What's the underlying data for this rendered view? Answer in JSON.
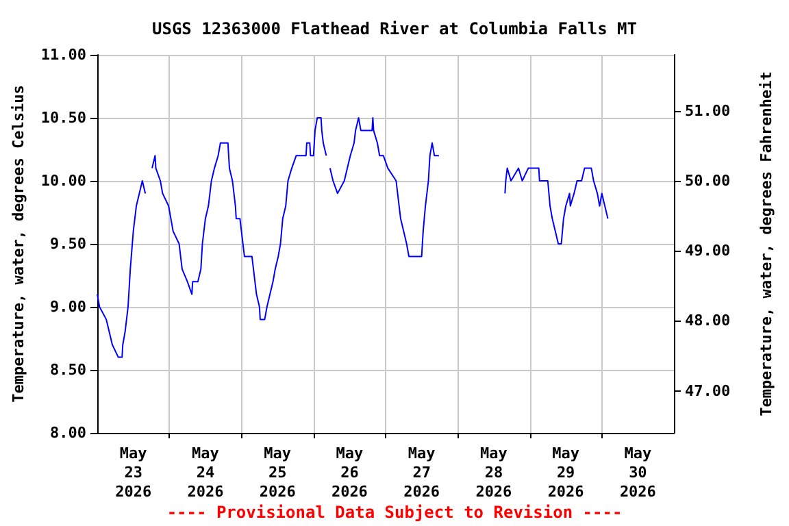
{
  "chart_data": {
    "type": "line",
    "title": "USGS 12363000 Flathead River at Columbia Falls MT",
    "ylabel": "Temperature, water, degrees Celsius",
    "y2label": "Temperature, water, degrees Fahrenheit",
    "annotations": [
      "---- Provisional Data Subject to Revision ----"
    ],
    "xlim": [
      "2026-05-23T00:00",
      "2026-05-31T00:00"
    ],
    "xticks": [
      {
        "value": "2026-05-23T12:00",
        "label": "May\n23\n2026"
      },
      {
        "value": "2026-05-24T12:00",
        "label": "May\n24\n2026"
      },
      {
        "value": "2026-05-25T12:00",
        "label": "May\n25\n2026"
      },
      {
        "value": "2026-05-26T12:00",
        "label": "May\n26\n2026"
      },
      {
        "value": "2026-05-27T12:00",
        "label": "May\n27\n2026"
      },
      {
        "value": "2026-05-28T12:00",
        "label": "May\n28\n2026"
      },
      {
        "value": "2026-05-29T12:00",
        "label": "May\n29\n2026"
      },
      {
        "value": "2026-05-30T12:00",
        "label": "May\n30\n2026"
      },
      {
        "value": "2026-05-24T00:00",
        "label": null
      },
      {
        "value": "2026-05-25T00:00",
        "label": null
      },
      {
        "value": "2026-05-26T00:00",
        "label": null
      },
      {
        "value": "2026-05-27T00:00",
        "label": null
      },
      {
        "value": "2026-05-28T00:00",
        "label": null
      },
      {
        "value": "2026-05-29T00:00",
        "label": null
      },
      {
        "value": "2026-05-30T00:00",
        "label": null
      }
    ],
    "ylim": [
      8,
      11
    ],
    "yticks": [
      {
        "value": 8,
        "label": "8.00"
      },
      {
        "value": 8.5,
        "label": "8.50"
      },
      {
        "value": 9,
        "label": "9.00"
      },
      {
        "value": 9.5,
        "label": "9.50"
      },
      {
        "value": 10,
        "label": "10.00"
      },
      {
        "value": 10.5,
        "label": "10.50"
      },
      {
        "value": 11,
        "label": "11.00"
      }
    ],
    "y2lim": [
      46.4,
      51.8
    ],
    "y2ticks": [
      {
        "value": 47,
        "label": "47.00"
      },
      {
        "value": 48,
        "label": "48.00"
      },
      {
        "value": 49,
        "label": "49.00"
      },
      {
        "value": 50,
        "label": "50.00"
      },
      {
        "value": 51,
        "label": "51.00"
      }
    ],
    "grid": true,
    "marker": "none",
    "line_style": "solid",
    "x": [
      "2026-05-23T00:00",
      "2026-05-23T00:45",
      "2026-05-23T03:00",
      "2026-05-23T04:00",
      "2026-05-23T05:00",
      "2026-05-23T07:00",
      "2026-05-23T08:15",
      "2026-05-23T08:30",
      "2026-05-23T09:15",
      "2026-05-23T10:15",
      "2026-05-23T11:00",
      "2026-05-23T12:00",
      "2026-05-23T13:00",
      "2026-05-23T14:00",
      "2026-05-23T15:00",
      "2026-05-23T16:00",
      "2026-05-23T16:30",
      "2026-05-23T18:15",
      "2026-05-23T19:15",
      "2026-05-23T19:30",
      "2026-05-23T21:00",
      "2026-05-23T21:45",
      "2026-05-23T23:45",
      "2026-05-24T01:15",
      "2026-05-24T03:15",
      "2026-05-24T04:15",
      "2026-05-24T06:00",
      "2026-05-24T07:30",
      "2026-05-24T07:45",
      "2026-05-24T09:30",
      "2026-05-24T10:30",
      "2026-05-24T11:00",
      "2026-05-24T12:00",
      "2026-05-24T13:00",
      "2026-05-24T14:00",
      "2026-05-24T15:00",
      "2026-05-24T16:15",
      "2026-05-24T17:00",
      "2026-05-24T19:30",
      "2026-05-24T20:00",
      "2026-05-24T21:00",
      "2026-05-24T22:00",
      "2026-05-24T22:15",
      "2026-05-24T23:30",
      "2026-05-25T00:30",
      "2026-05-25T01:00",
      "2026-05-25T03:30",
      "2026-05-25T04:30",
      "2026-05-25T05:00",
      "2026-05-25T06:00",
      "2026-05-25T06:15",
      "2026-05-25T07:45",
      "2026-05-25T08:30",
      "2026-05-25T09:30",
      "2026-05-25T10:30",
      "2026-05-25T11:15",
      "2026-05-25T12:15",
      "2026-05-25T13:00",
      "2026-05-25T13:45",
      "2026-05-25T14:45",
      "2026-05-25T15:30",
      "2026-05-25T16:45",
      "2026-05-25T18:15",
      "2026-05-25T21:30",
      "2026-05-25T21:45",
      "2026-05-25T22:45",
      "2026-05-25T23:00",
      "2026-05-26T00:00",
      "2026-05-26T00:30",
      "2026-05-26T01:15",
      "2026-05-26T02:30",
      "2026-05-26T02:45",
      "2026-05-26T03:15",
      "2026-05-26T04:15",
      "2026-05-26T04:45",
      "2026-05-26T05:30",
      "2026-05-26T06:30",
      "2026-05-26T08:00",
      "2026-05-26T10:15",
      "2026-05-26T11:15",
      "2026-05-26T12:15",
      "2026-05-26T13:30",
      "2026-05-26T14:00",
      "2026-05-26T15:00",
      "2026-05-26T15:45",
      "2026-05-26T19:30",
      "2026-05-26T19:45",
      "2026-05-26T20:00",
      "2026-05-26T21:15",
      "2026-05-26T22:00",
      "2026-05-26T23:15",
      "2026-05-27T00:45",
      "2026-05-27T03:30",
      "2026-05-27T04:00",
      "2026-05-27T04:30",
      "2026-05-27T05:00",
      "2026-05-27T06:00",
      "2026-05-27T07:00",
      "2026-05-27T07:45",
      "2026-05-27T12:00",
      "2026-05-27T12:30",
      "2026-05-27T13:15",
      "2026-05-27T14:15",
      "2026-05-27T14:45",
      "2026-05-27T15:30",
      "2026-05-27T16:15",
      "2026-05-27T17:45",
      "2026-05-27T18:00",
      "2026-05-28T15:45",
      "2026-05-28T16:00",
      "2026-05-28T16:30",
      "2026-05-28T17:45",
      "2026-05-28T20:15",
      "2026-05-28T21:30",
      "2026-05-28T23:30",
      "2026-05-29T03:00",
      "2026-05-29T03:15",
      "2026-05-29T06:00",
      "2026-05-29T06:45",
      "2026-05-29T07:30",
      "2026-05-29T08:30",
      "2026-05-29T09:30",
      "2026-05-29T10:30",
      "2026-05-29T11:15",
      "2026-05-29T12:00",
      "2026-05-29T13:15",
      "2026-05-29T13:30",
      "2026-05-29T14:45",
      "2026-05-29T15:45",
      "2026-05-29T17:15",
      "2026-05-29T18:15",
      "2026-05-29T20:30",
      "2026-05-29T21:15",
      "2026-05-29T22:30",
      "2026-05-29T23:15",
      "2026-05-30T00:00",
      "2026-05-30T01:00",
      "2026-05-30T02:00"
    ],
    "series": [
      {
        "color": "#0000ff",
        "values": [
          9.1,
          9.0,
          8.9,
          8.8,
          8.7,
          8.6,
          8.6,
          8.7,
          8.8,
          9.0,
          9.3,
          9.6,
          9.8,
          9.9,
          10.0,
          9.9,
          null,
          10.1,
          10.2,
          10.1,
          10.0,
          9.9,
          9.8,
          9.6,
          9.5,
          9.3,
          9.2,
          9.1,
          9.2,
          9.2,
          9.3,
          9.5,
          9.7,
          9.8,
          10.0,
          10.1,
          10.2,
          10.3,
          10.3,
          10.1,
          10.0,
          9.8,
          9.7,
          9.7,
          9.5,
          9.4,
          9.4,
          9.2,
          9.1,
          9.0,
          8.9,
          8.9,
          9.0,
          9.1,
          9.2,
          9.3,
          9.4,
          9.5,
          9.7,
          9.8,
          10.0,
          10.1,
          10.2,
          10.2,
          10.3,
          10.3,
          10.2,
          10.2,
          10.4,
          10.5,
          10.5,
          10.4,
          10.3,
          10.2,
          null,
          10.1,
          10.0,
          9.9,
          10.0,
          10.1,
          10.2,
          10.3,
          10.4,
          10.5,
          10.4,
          10.4,
          10.5,
          10.4,
          10.3,
          10.2,
          10.2,
          10.1,
          10.0,
          9.9,
          9.8,
          9.7,
          9.6,
          9.5,
          9.4,
          9.4,
          9.6,
          9.8,
          10.0,
          10.2,
          10.3,
          10.2,
          10.2,
          null,
          9.9,
          10.0,
          10.1,
          10.0,
          10.1,
          10.0,
          10.1,
          10.1,
          10.0,
          10.0,
          9.8,
          9.7,
          9.6,
          9.5,
          9.5,
          9.7,
          9.8,
          9.9,
          9.8,
          9.9,
          10.0,
          10.0,
          10.1,
          10.1,
          10.0,
          9.9,
          9.8,
          9.9,
          9.8,
          9.7
        ]
      }
    ]
  }
}
